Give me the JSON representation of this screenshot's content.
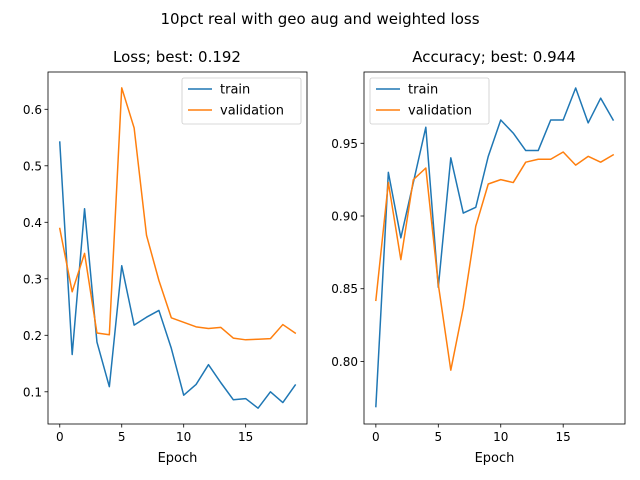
{
  "figure": {
    "suptitle": "10pct real with geo aug and weighted loss"
  },
  "colors": {
    "train": "#1f77b4",
    "validation": "#ff7f0e"
  },
  "chart_data": [
    {
      "type": "line",
      "title": "Loss; best: 0.192",
      "xlabel": "Epoch",
      "ylabel": "",
      "xlim": [
        -0.95,
        19.95
      ],
      "ylim": [
        0.043,
        0.666
      ],
      "xticks": [
        0,
        5,
        10,
        15
      ],
      "yticks": [
        0.1,
        0.2,
        0.3,
        0.4,
        0.5,
        0.6
      ],
      "ytick_labels": [
        "0.1",
        "0.2",
        "0.3",
        "0.4",
        "0.5",
        "0.6"
      ],
      "legend_position": "top-right",
      "x": [
        0,
        1,
        2,
        3,
        4,
        5,
        6,
        7,
        8,
        9,
        10,
        11,
        12,
        13,
        14,
        15,
        16,
        17,
        18,
        19
      ],
      "series": [
        {
          "name": "train",
          "values": [
            0.542,
            0.166,
            0.424,
            0.188,
            0.109,
            0.323,
            0.218,
            0.232,
            0.244,
            0.177,
            0.094,
            0.113,
            0.148,
            0.116,
            0.086,
            0.088,
            0.071,
            0.1,
            0.081,
            0.112
          ]
        },
        {
          "name": "validation",
          "values": [
            0.389,
            0.277,
            0.345,
            0.204,
            0.201,
            0.638,
            0.567,
            0.377,
            0.297,
            0.231,
            0.223,
            0.215,
            0.212,
            0.214,
            0.195,
            0.192,
            0.193,
            0.194,
            0.219,
            0.204
          ]
        }
      ]
    },
    {
      "type": "line",
      "title": "Accuracy; best: 0.944",
      "xlabel": "Epoch",
      "ylabel": "",
      "xlim": [
        -0.95,
        19.95
      ],
      "ylim": [
        0.757,
        0.999
      ],
      "xticks": [
        0,
        5,
        10,
        15
      ],
      "yticks": [
        0.8,
        0.85,
        0.9,
        0.95
      ],
      "ytick_labels": [
        "0.80",
        "0.85",
        "0.90",
        "0.95"
      ],
      "legend_position": "top-left",
      "x": [
        0,
        1,
        2,
        3,
        4,
        5,
        6,
        7,
        8,
        9,
        10,
        11,
        12,
        13,
        14,
        15,
        16,
        17,
        18,
        19
      ],
      "series": [
        {
          "name": "train",
          "values": [
            0.769,
            0.93,
            0.885,
            0.923,
            0.961,
            0.851,
            0.94,
            0.902,
            0.906,
            0.941,
            0.966,
            0.957,
            0.945,
            0.945,
            0.966,
            0.966,
            0.988,
            0.964,
            0.981,
            0.966
          ]
        },
        {
          "name": "validation",
          "values": [
            0.842,
            0.923,
            0.87,
            0.925,
            0.933,
            0.853,
            0.794,
            0.837,
            0.893,
            0.922,
            0.925,
            0.923,
            0.937,
            0.939,
            0.939,
            0.944,
            0.935,
            0.941,
            0.937,
            0.942
          ]
        }
      ]
    }
  ]
}
